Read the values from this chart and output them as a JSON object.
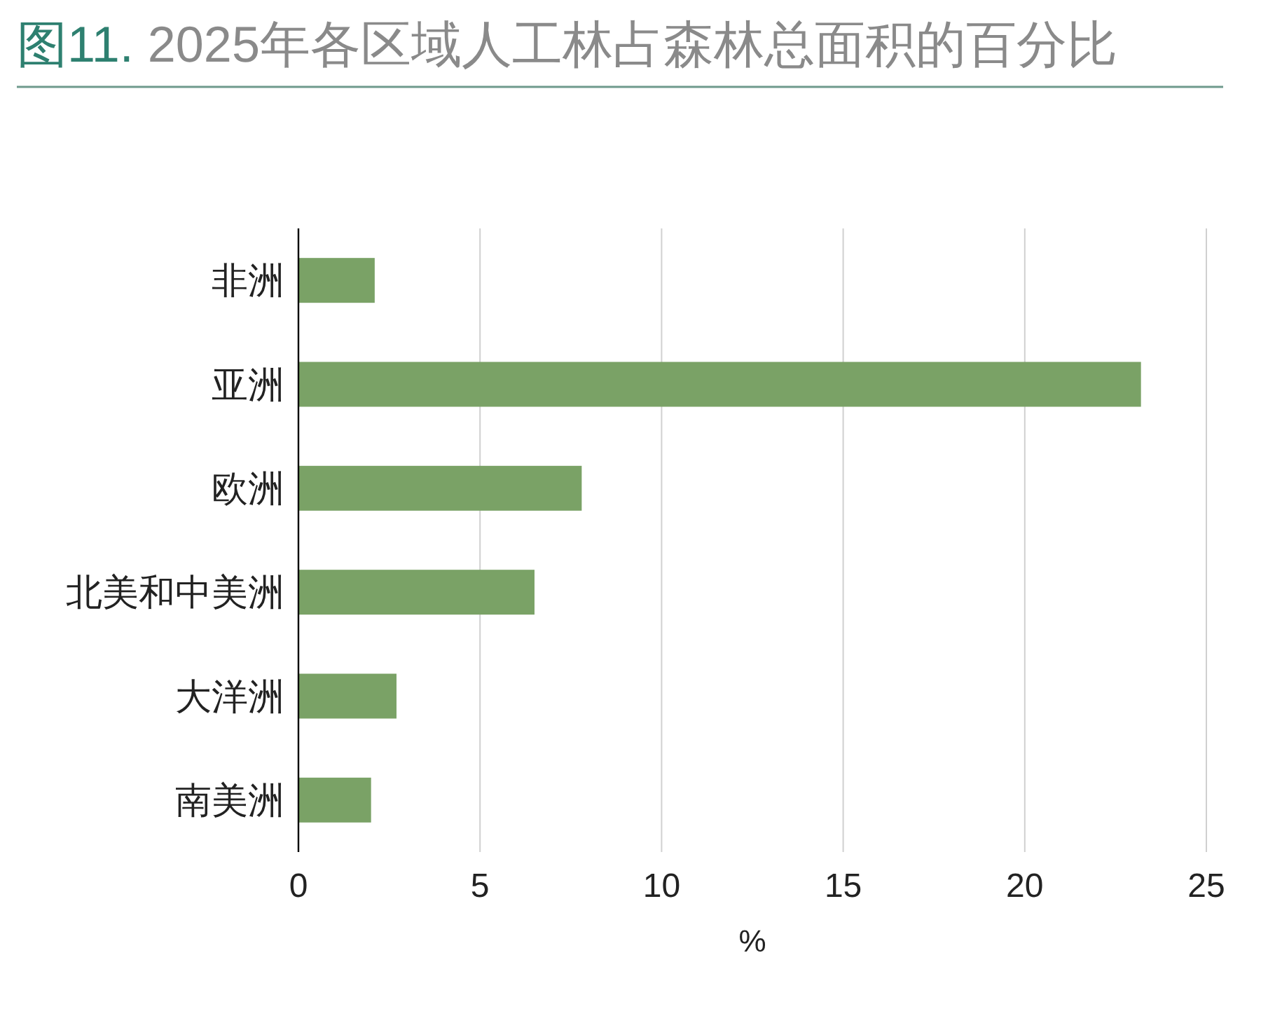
{
  "chart_data": {
    "type": "bar",
    "orientation": "horizontal",
    "title": "图11. 2025年各区域人工林占森林总面积的百分比",
    "categories": [
      "非洲",
      "亚洲",
      "欧洲",
      "北美和中美洲",
      "大洋洲",
      "南美洲"
    ],
    "values": [
      2.1,
      23.2,
      7.8,
      6.5,
      2.7,
      2.0
    ],
    "color": "#7aa266",
    "xlabel": "%",
    "xlim": [
      0,
      25
    ],
    "xticks": [
      0,
      5,
      10,
      15,
      20,
      25
    ],
    "grid": "x"
  }
}
